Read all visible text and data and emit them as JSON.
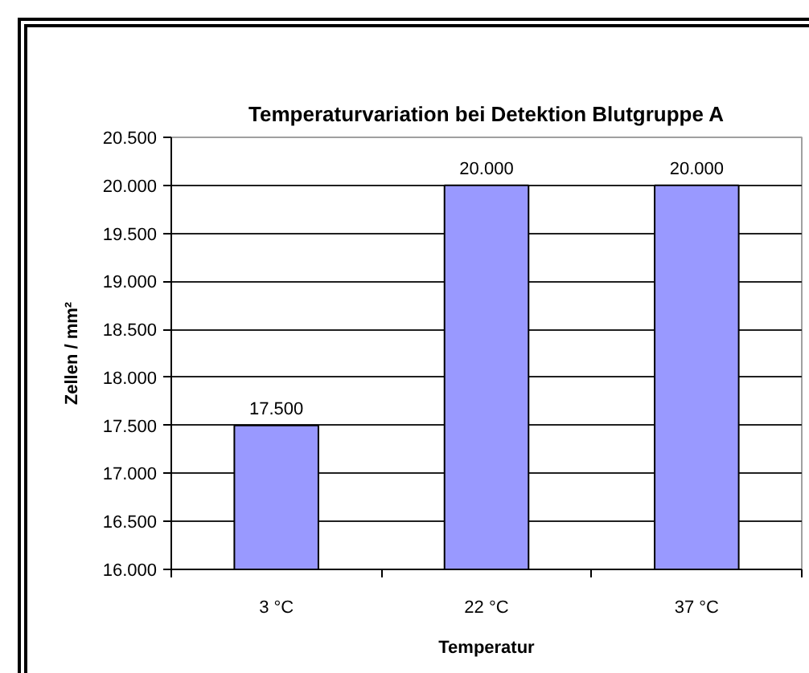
{
  "chart_data": {
    "type": "bar",
    "title": "Temperaturvariation bei Detektion Blutgruppe A",
    "xlabel": "Temperatur",
    "ylabel": "Zellen / mm²",
    "categories": [
      "3 °C",
      "22 °C",
      "37 °C"
    ],
    "values": [
      17500,
      20000,
      20000
    ],
    "value_labels": [
      "17.500",
      "20.000",
      "20.000"
    ],
    "color": "#9999ff",
    "ylim": [
      16000,
      20500
    ],
    "yticks": [
      {
        "value": 16000,
        "label": "16.000"
      },
      {
        "value": 16500,
        "label": "16.500"
      },
      {
        "value": 17000,
        "label": "17.000"
      },
      {
        "value": 17500,
        "label": "17.500"
      },
      {
        "value": 18000,
        "label": "18.000"
      },
      {
        "value": 18500,
        "label": "18.500"
      },
      {
        "value": 19000,
        "label": "19.000"
      },
      {
        "value": 19500,
        "label": "19.500"
      },
      {
        "value": 20000,
        "label": "20.000"
      },
      {
        "value": 20500,
        "label": "20.500"
      }
    ],
    "grid": "y"
  }
}
